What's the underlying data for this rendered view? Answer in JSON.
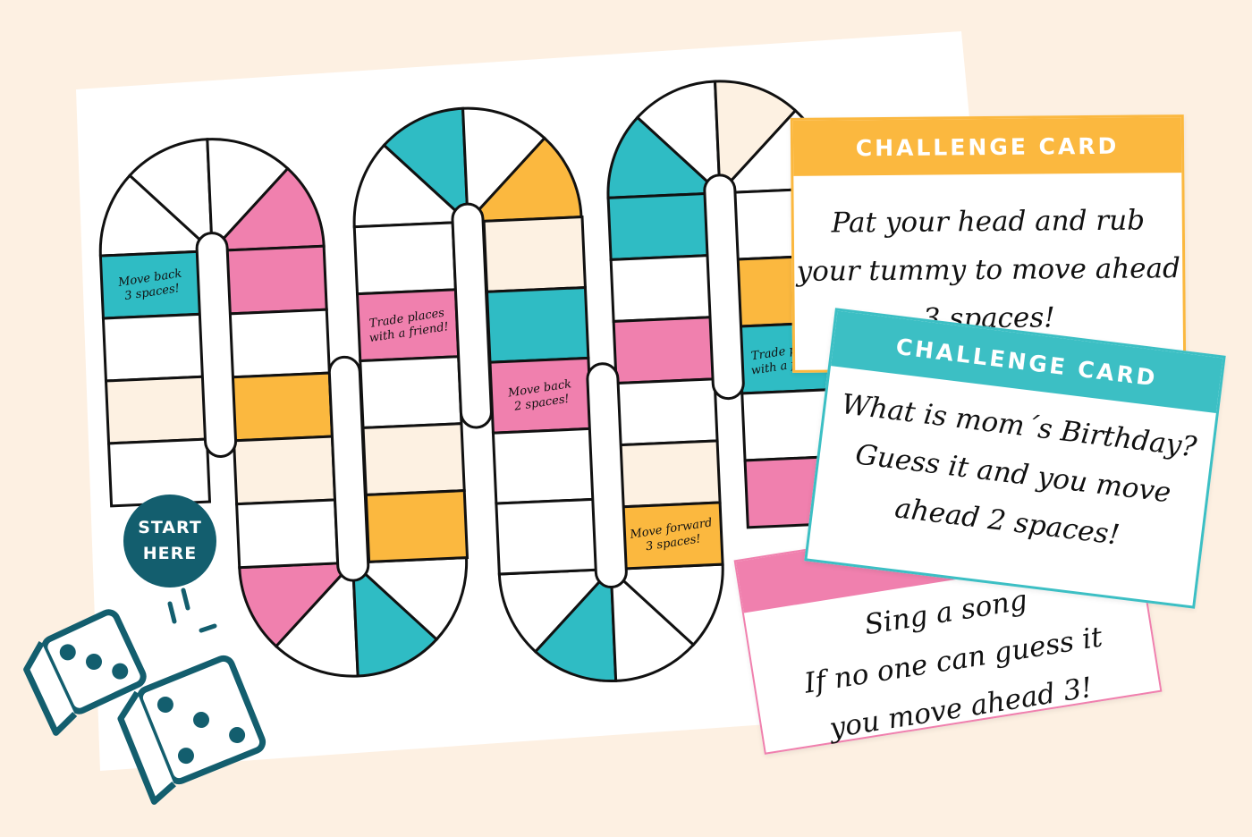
{
  "colors": {
    "background": "#fdf0e2",
    "teal": "#2fbcc4",
    "pink": "#f080ae",
    "yellow": "#fbb83f",
    "cream": "#fdf1e2",
    "white": "#ffffff",
    "dark_teal": "#135e6e"
  },
  "board": {
    "start_label": [
      "START",
      "HERE"
    ],
    "lanes": [
      {
        "cells": [
          {
            "color": "teal",
            "label": [
              "Move back",
              "3 spaces!"
            ]
          },
          {
            "color": "white"
          },
          {
            "color": "cream"
          },
          {
            "color": "white"
          }
        ]
      },
      {
        "cells": [
          {
            "color": "pink"
          },
          {
            "color": "white"
          },
          {
            "color": "yellow"
          },
          {
            "color": "cream"
          },
          {
            "color": "white"
          }
        ]
      },
      {
        "cells": [
          {
            "color": "white"
          },
          {
            "color": "pink",
            "label": [
              "Trade places",
              "with a friend!"
            ]
          },
          {
            "color": "white"
          },
          {
            "color": "cream"
          },
          {
            "color": "yellow"
          }
        ]
      },
      {
        "cells": [
          {
            "color": "cream"
          },
          {
            "color": "teal"
          },
          {
            "color": "pink",
            "label": [
              "Move back",
              "2 spaces!"
            ]
          },
          {
            "color": "white"
          },
          {
            "color": "white"
          }
        ]
      },
      {
        "cells": [
          {
            "color": "teal"
          },
          {
            "color": "white"
          },
          {
            "color": "pink"
          },
          {
            "color": "white"
          },
          {
            "color": "cream"
          },
          {
            "color": "yellow",
            "label": [
              "Move forward",
              "3 spaces!"
            ]
          }
        ]
      },
      {
        "cells": [
          {
            "color": "white"
          },
          {
            "color": "yellow"
          },
          {
            "color": "teal",
            "label": [
              "Trade places",
              "with a friend!"
            ]
          },
          {
            "color": "white"
          },
          {
            "color": "pink"
          }
        ]
      }
    ],
    "caps": [
      {
        "sectors": [
          "white",
          "white",
          "white",
          "pink"
        ]
      },
      {
        "sectors": [
          "pink",
          "white",
          "teal",
          "white"
        ]
      },
      {
        "sectors": [
          "white",
          "teal",
          "white",
          "yellow"
        ]
      },
      {
        "sectors": [
          "white",
          "teal",
          "white",
          "white"
        ]
      },
      {
        "sectors": [
          "teal",
          "white",
          "cream",
          "white"
        ]
      }
    ]
  },
  "cards": {
    "yellow": {
      "title": "CHALLENGE CARD",
      "lines": [
        "Pat your head and rub",
        "your tummy to move ahead",
        "3 spaces!"
      ],
      "color": "#fbb83f"
    },
    "pink": {
      "title": "",
      "lines": [
        "Sing a song",
        "If no one can guess it",
        "you move ahead 3!"
      ],
      "color": "#f080ae"
    },
    "teal": {
      "title": "CHALLENGE CARD",
      "lines": [
        "What is mom´s Birthday?",
        "Guess it and you move",
        "ahead 2 spaces!"
      ],
      "color": "#3cbfc4"
    }
  },
  "dice": {
    "icon": "dice-icon",
    "count": 2
  }
}
